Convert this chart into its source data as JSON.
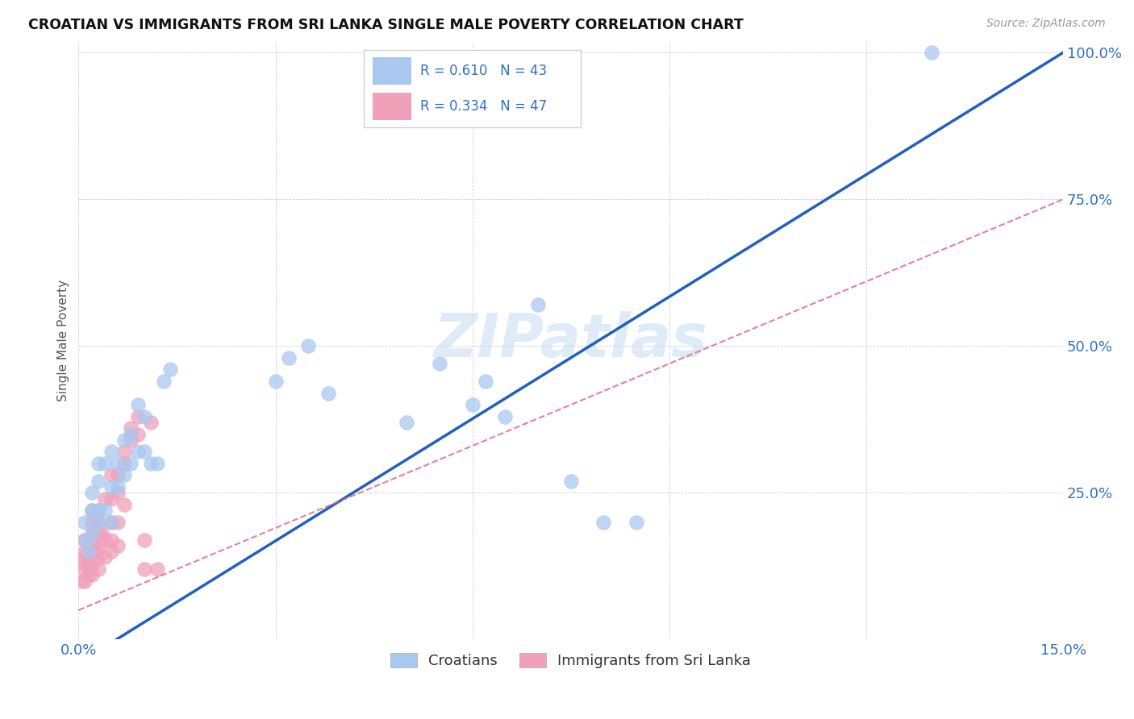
{
  "title": "CROATIAN VS IMMIGRANTS FROM SRI LANKA SINGLE MALE POVERTY CORRELATION CHART",
  "source": "Source: ZipAtlas.com",
  "ylabel": "Single Male Poverty",
  "x_min": 0.0,
  "x_max": 0.15,
  "y_min": 0.0,
  "y_max": 1.0,
  "r_croatian": 0.61,
  "n_croatian": 43,
  "r_srilanka": 0.334,
  "n_srilanka": 47,
  "blue_color": "#A8C8F0",
  "pink_color": "#F0A0B8",
  "blue_line_color": "#2060C0",
  "pink_line_color": "#E06080",
  "watermark": "ZIPatlas",
  "croatian_x": [
    0.001,
    0.001,
    0.0015,
    0.002,
    0.002,
    0.002,
    0.003,
    0.003,
    0.003,
    0.003,
    0.004,
    0.004,
    0.005,
    0.005,
    0.005,
    0.006,
    0.006,
    0.007,
    0.007,
    0.008,
    0.008,
    0.009,
    0.009,
    0.01,
    0.01,
    0.011,
    0.012,
    0.013,
    0.014,
    0.03,
    0.032,
    0.035,
    0.038,
    0.05,
    0.055,
    0.06,
    0.062,
    0.065,
    0.07,
    0.075,
    0.08,
    0.085,
    0.13
  ],
  "croatian_y": [
    0.17,
    0.2,
    0.15,
    0.18,
    0.22,
    0.25,
    0.2,
    0.22,
    0.27,
    0.3,
    0.22,
    0.3,
    0.2,
    0.26,
    0.32,
    0.26,
    0.3,
    0.28,
    0.34,
    0.3,
    0.35,
    0.32,
    0.4,
    0.32,
    0.38,
    0.3,
    0.3,
    0.44,
    0.46,
    0.44,
    0.48,
    0.5,
    0.42,
    0.37,
    0.47,
    0.4,
    0.44,
    0.38,
    0.57,
    0.27,
    0.2,
    0.2,
    1.0
  ],
  "srilanka_x": [
    0.0005,
    0.001,
    0.001,
    0.001,
    0.001,
    0.001,
    0.001,
    0.0015,
    0.0015,
    0.002,
    0.002,
    0.002,
    0.002,
    0.002,
    0.002,
    0.002,
    0.0025,
    0.003,
    0.003,
    0.003,
    0.003,
    0.003,
    0.003,
    0.0035,
    0.004,
    0.004,
    0.004,
    0.005,
    0.005,
    0.005,
    0.005,
    0.005,
    0.006,
    0.006,
    0.006,
    0.006,
    0.007,
    0.007,
    0.007,
    0.008,
    0.008,
    0.009,
    0.009,
    0.01,
    0.01,
    0.011,
    0.012
  ],
  "srilanka_y": [
    0.1,
    0.1,
    0.12,
    0.13,
    0.14,
    0.15,
    0.17,
    0.11,
    0.13,
    0.11,
    0.13,
    0.15,
    0.17,
    0.18,
    0.2,
    0.22,
    0.15,
    0.12,
    0.14,
    0.16,
    0.18,
    0.2,
    0.22,
    0.18,
    0.14,
    0.17,
    0.24,
    0.15,
    0.17,
    0.2,
    0.24,
    0.28,
    0.16,
    0.2,
    0.25,
    0.28,
    0.23,
    0.3,
    0.32,
    0.34,
    0.36,
    0.35,
    0.38,
    0.12,
    0.17,
    0.37,
    0.12
  ]
}
